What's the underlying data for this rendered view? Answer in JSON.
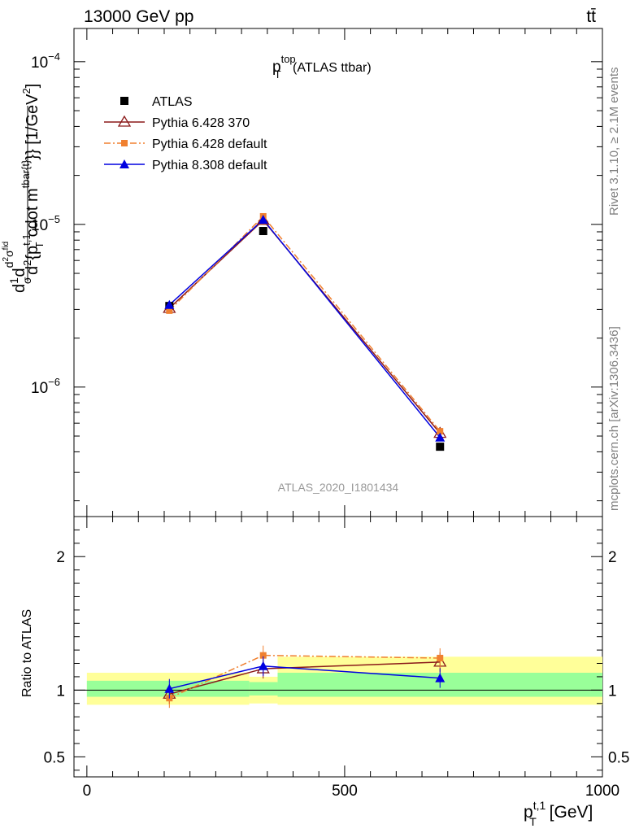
{
  "header": {
    "left": "13000 GeV pp",
    "right": "tt̄"
  },
  "side_labels": {
    "rivet": "Rivet 3.1.10, ≥ 2.1M events",
    "mcplots": "mcplots.cern.ch [arXiv:1306.3436]"
  },
  "chart_data": [
    {
      "type": "line",
      "title": {
        "main": "p",
        "sup": "top",
        "sub": "T",
        "rest": " (ATLAS ttbar)"
      },
      "ylabel_main": "d¹⁄σd d²σᶦᵈ / d² {pᵀᵗ·¹ cdot mᵗᵇᵃʳ⁽ᵗ⁾}} [1/GeV²]",
      "ylabel_parts": {
        "prefix": "d",
        "frac1_num": "1",
        "frac1_den": "σ",
        "mid": "d",
        "frac2_num": "d",
        "frac2_num_sup": "2",
        "frac2_num_sym": "σ",
        "frac2_num_sup2": "fid",
        "frac2_den": "d",
        "frac2_den_sup": "2",
        "frac2_den_text": "{p",
        "frac2_den_sup3": "t,1",
        "frac2_den_sub3": "T",
        "frac2_den_text2": "cdot m",
        "frac2_den_sup4": "tbar{t}",
        "suffix": "}} [1/GeV",
        "suffix_sup": "2",
        "suffix_end": "]"
      },
      "yscale": "log",
      "ylim": [
        1.6e-07,
        0.00016
      ],
      "xlim": [
        -25,
        1000
      ],
      "ytick_labels": [
        {
          "value": 0.0001,
          "base": "10",
          "exp": "−4"
        },
        {
          "value": 1e-05,
          "base": "10",
          "exp": "−5"
        },
        {
          "value": 1e-06,
          "base": "10",
          "exp": "−6"
        }
      ],
      "watermark": "ATLAS_2020_I1801434",
      "legend": {
        "placement": "top-left"
      },
      "x": [
        160,
        342,
        685
      ],
      "series": [
        {
          "name": "ATLAS",
          "color": "#000000",
          "marker": "square",
          "values": [
            3.15e-06,
            9.1e-06,
            4.3e-07
          ]
        },
        {
          "name": "Pythia 6.428 370",
          "color": "#8b1a1a",
          "marker": "triangle-open",
          "values": [
            3.05e-06,
            1.06e-05,
            5.2e-07
          ]
        },
        {
          "name": "Pythia 6.428 default",
          "color": "#f08030",
          "marker": "square-small",
          "dash": "dashdot",
          "values": [
            2.95e-06,
            1.12e-05,
            5.35e-07
          ]
        },
        {
          "name": "Pythia 8.308 default",
          "color": "#0000e0",
          "marker": "triangle",
          "values": [
            3.2e-06,
            1.07e-05,
            4.9e-07
          ]
        }
      ]
    },
    {
      "type": "line",
      "ylabel": "Ratio to ATLAS",
      "xlabel": {
        "main": "p",
        "sup": "t,1",
        "sub": "T",
        "rest": " [GeV]"
      },
      "ylim": [
        0.35,
        2.3
      ],
      "xlim": [
        -25,
        1000
      ],
      "yticks": [
        0.5,
        1,
        2
      ],
      "ytick_labels": [
        "0.5",
        "1",
        "2"
      ],
      "xticks": [
        0,
        500,
        1000
      ],
      "xtick_labels": [
        "0",
        "500",
        "1000"
      ],
      "bands": [
        {
          "x0": 0,
          "x1": 315,
          "yellow": [
            0.89,
            1.13
          ],
          "green": [
            0.95,
            1.07
          ]
        },
        {
          "x0": 315,
          "x1": 370,
          "yellow": [
            0.9,
            1.1
          ],
          "green": [
            0.96,
            1.06
          ]
        },
        {
          "x0": 370,
          "x1": 1000,
          "yellow": [
            0.89,
            1.25
          ],
          "green": [
            0.95,
            1.13
          ]
        }
      ],
      "series": [
        {
          "name": "Pythia 6.428 370",
          "color": "#8b1a1a",
          "marker": "triangle-open",
          "values": [
            0.97,
            1.16,
            1.21
          ]
        },
        {
          "name": "Pythia 6.428 default",
          "color": "#f08030",
          "marker": "square-small",
          "dash": "dashdot",
          "values": [
            0.94,
            1.26,
            1.24
          ]
        },
        {
          "name": "Pythia 8.308 default",
          "color": "#0000e0",
          "marker": "triangle",
          "values": [
            1.01,
            1.18,
            1.09
          ]
        }
      ]
    }
  ]
}
